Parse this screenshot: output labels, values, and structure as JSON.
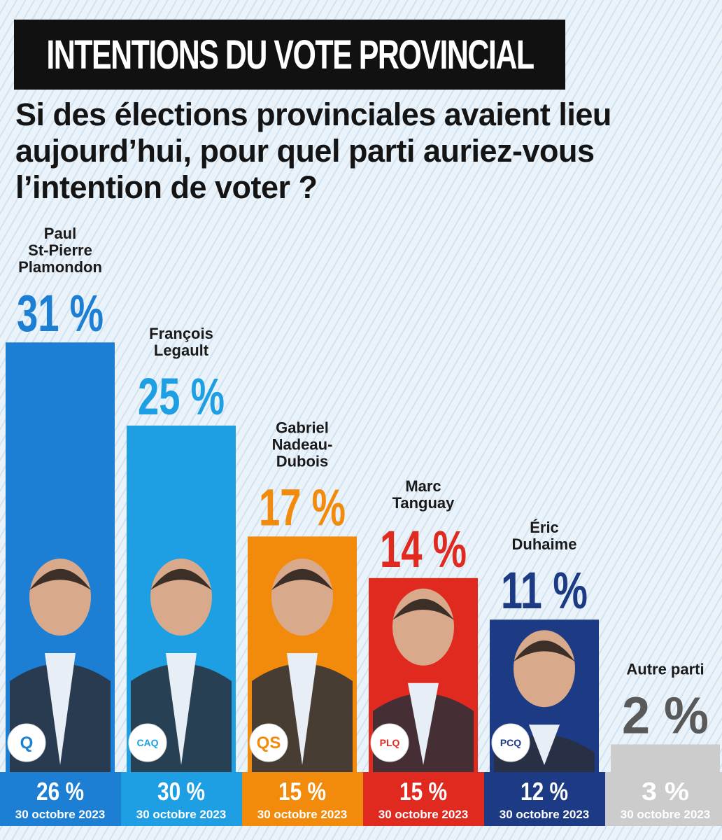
{
  "header": {
    "title": "INTENTIONS DU VOTE PROVINCIAL",
    "question": "Si des élections provinciales avaient lieu aujourd’hui, pour quel parti auriez-vous l’intention de voter ?"
  },
  "chart_data": {
    "type": "bar",
    "title": "INTENTIONS DU VOTE PROVINCIAL",
    "subtitle": "Si des élections provinciales avaient lieu aujourd’hui, pour quel parti auriez-vous l’intention de voter ?",
    "categories": [
      [
        "Paul",
        "St-Pierre",
        "Plamondon"
      ],
      [
        "François",
        "Legault"
      ],
      [
        "Gabriel",
        "Nadeau-",
        "Dubois"
      ],
      [
        "Marc",
        "Tanguay"
      ],
      [
        "Éric",
        "Duhaime"
      ],
      [
        "Autre parti"
      ]
    ],
    "value_labels": [
      "31 %",
      "25 %",
      "17 %",
      "14 %",
      "11 %",
      "2 %"
    ],
    "values": [
      31,
      25,
      17,
      14,
      11,
      2
    ],
    "previous_labels": [
      "26 %",
      "30 %",
      "15 %",
      "15 %",
      "12 %",
      "3 %"
    ],
    "previous_values": [
      26,
      30,
      15,
      15,
      12,
      3
    ],
    "previous_date": "30 octobre 2023",
    "colors": [
      "#1c7fd4",
      "#1e9fe3",
      "#f28a0c",
      "#e02a20",
      "#1d3b84",
      "#cccccc"
    ],
    "label_colors": [
      "#1c7fd4",
      "#1e9fe3",
      "#f28a0c",
      "#e02a20",
      "#1d3b84",
      "#595959"
    ],
    "party_logos": [
      "Q",
      "CAQ",
      "QS",
      "PLQ",
      "PCQ",
      ""
    ]
  }
}
